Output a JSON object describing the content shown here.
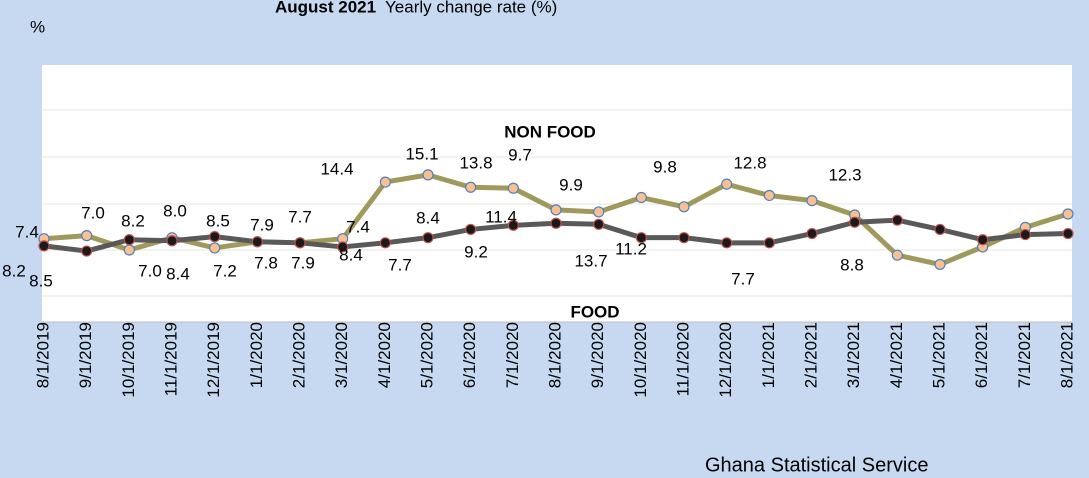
{
  "chart_data": {
    "type": "line",
    "title": "August  2021",
    "subtitle": "Yearly change rate (%)",
    "y_label": "%",
    "source": "Ghana Statistical Service",
    "categories": [
      "8/1/2019",
      "9/1/2019",
      "10/1/2019",
      "11/1/2019",
      "12/1/2019",
      "1/1/2020",
      "2/1/2020",
      "3/1/2020",
      "4/1/2020",
      "5/1/2020",
      "6/1/2020",
      "7/1/2020",
      "8/1/2020",
      "9/1/2020",
      "10/1/2020",
      "11/1/2020",
      "12/1/2020",
      "1/1/2021",
      "2/1/2021",
      "3/1/2021",
      "4/1/2021",
      "5/1/2021",
      "6/1/2021",
      "7/1/2021",
      "8/1/2021"
    ],
    "series": [
      {
        "name": "NON FOOD",
        "color": "#9f9a5b",
        "marker_fill": "#fac090",
        "marker_edge": "#4f81bd",
        "values": [
          8.9,
          9.2,
          7.8,
          9.0,
          8.0,
          8.6,
          8.5,
          8.9,
          14.4,
          15.1,
          13.9,
          13.8,
          11.7,
          11.5,
          12.9,
          12.0,
          14.2,
          13.1,
          12.6,
          11.2,
          7.3,
          6.4,
          8.1,
          10.0,
          11.3
        ]
      },
      {
        "name": "FOOD",
        "color": "#595959",
        "marker_fill": "#1a1a1a",
        "marker_edge": "#c0504d",
        "values": [
          8.2,
          7.7,
          8.8,
          8.7,
          9.1,
          8.6,
          8.5,
          8.1,
          8.5,
          9.0,
          9.8,
          10.2,
          10.4,
          10.3,
          9.0,
          9.0,
          8.5,
          8.5,
          9.4,
          10.5,
          10.7,
          9.8,
          8.8,
          9.3,
          9.4
        ]
      }
    ],
    "annotations": [
      "7.4",
      "7.0",
      "8.2",
      "8.0",
      "8.5",
      "7.9",
      "7.7",
      "7.4",
      "14.4",
      "15.1",
      "13.8",
      "9.7",
      "9.9",
      "9.8",
      "12.8",
      "12.3",
      "8.2",
      "8.5",
      "7.0",
      "8.4",
      "7.2",
      "7.8",
      "7.9",
      "8.4",
      "7.7",
      "8.4",
      "11.4",
      "9.2",
      "13.7",
      "11.2",
      "7.7",
      "8.8"
    ],
    "ylim": [
      1,
      25
    ]
  }
}
